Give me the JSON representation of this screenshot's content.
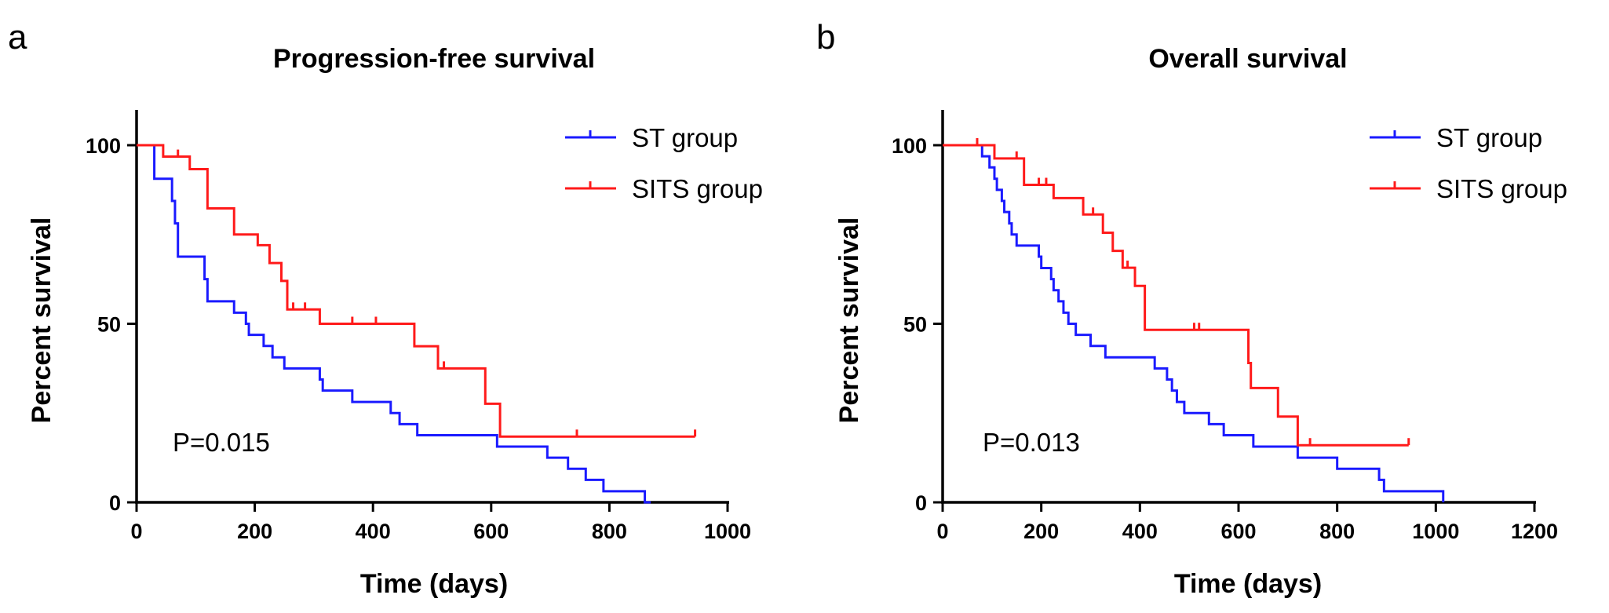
{
  "colors": {
    "st": "#1a1aff",
    "sits": "#ff1a1a"
  },
  "chart_data": [
    {
      "type": "line",
      "subtype": "kaplan-meier",
      "panel_label": "a",
      "title": "Progression-free survival",
      "xlabel": "Time (days)",
      "ylabel": "Percent survival",
      "xlim": [
        0,
        1000
      ],
      "ylim": [
        0,
        100
      ],
      "xticks": [
        0,
        200,
        400,
        600,
        800,
        1000
      ],
      "yticks": [
        0,
        50,
        100
      ],
      "legend_position": "top-right",
      "annotation": "P=0.015",
      "series": [
        {
          "name": "ST group",
          "color_key": "st",
          "steps": [
            [
              0,
              100
            ],
            [
              30,
              90.6
            ],
            [
              60,
              84.4
            ],
            [
              65,
              78.1
            ],
            [
              70,
              68.8
            ],
            [
              115,
              62.5
            ],
            [
              120,
              56.3
            ],
            [
              165,
              53.1
            ],
            [
              185,
              50
            ],
            [
              190,
              46.9
            ],
            [
              215,
              43.8
            ],
            [
              230,
              40.6
            ],
            [
              250,
              37.5
            ],
            [
              310,
              34.4
            ],
            [
              315,
              31.3
            ],
            [
              365,
              28.1
            ],
            [
              430,
              25
            ],
            [
              445,
              21.9
            ],
            [
              475,
              18.8
            ],
            [
              610,
              15.6
            ],
            [
              695,
              12.5
            ],
            [
              730,
              9.4
            ],
            [
              760,
              6.3
            ],
            [
              790,
              3.1
            ],
            [
              860,
              0
            ]
          ],
          "end": 870,
          "censored": []
        },
        {
          "name": "SITS group",
          "color_key": "sits",
          "steps": [
            [
              0,
              100
            ],
            [
              45,
              96.8
            ],
            [
              90,
              93.3
            ],
            [
              120,
              82.3
            ],
            [
              165,
              75
            ],
            [
              205,
              72
            ],
            [
              225,
              67
            ],
            [
              245,
              62
            ],
            [
              255,
              54
            ],
            [
              310,
              50
            ],
            [
              470,
              43.7
            ],
            [
              510,
              37.5
            ],
            [
              590,
              27.6
            ],
            [
              615,
              18.4
            ]
          ],
          "end": 945,
          "censored": [
            [
              70,
              96.8
            ],
            [
              265,
              54
            ],
            [
              285,
              54
            ],
            [
              365,
              50
            ],
            [
              405,
              50
            ],
            [
              520,
              37.5
            ],
            [
              745,
              18.4
            ],
            [
              945,
              18.4
            ]
          ]
        }
      ]
    },
    {
      "type": "line",
      "subtype": "kaplan-meier",
      "panel_label": "b",
      "title": "Overall survival",
      "xlabel": "Time (days)",
      "ylabel": "Percent survival",
      "xlim": [
        0,
        1200
      ],
      "ylim": [
        0,
        100
      ],
      "xticks": [
        0,
        200,
        400,
        600,
        800,
        1000,
        1200
      ],
      "yticks": [
        0,
        50,
        100
      ],
      "legend_position": "top-right",
      "annotation": "P=0.013",
      "series": [
        {
          "name": "ST group",
          "color_key": "st",
          "steps": [
            [
              0,
              100
            ],
            [
              80,
              96.9
            ],
            [
              95,
              93.8
            ],
            [
              105,
              90.6
            ],
            [
              110,
              87.5
            ],
            [
              120,
              84.4
            ],
            [
              125,
              81.3
            ],
            [
              135,
              78.1
            ],
            [
              140,
              75
            ],
            [
              150,
              71.9
            ],
            [
              195,
              68.8
            ],
            [
              200,
              65.6
            ],
            [
              220,
              62.5
            ],
            [
              225,
              59.4
            ],
            [
              235,
              56.3
            ],
            [
              245,
              53.1
            ],
            [
              255,
              50
            ],
            [
              270,
              46.9
            ],
            [
              300,
              43.8
            ],
            [
              330,
              40.6
            ],
            [
              430,
              37.5
            ],
            [
              455,
              34.4
            ],
            [
              465,
              31.3
            ],
            [
              475,
              28.1
            ],
            [
              490,
              25
            ],
            [
              540,
              21.9
            ],
            [
              570,
              18.8
            ],
            [
              630,
              15.6
            ],
            [
              720,
              12.5
            ],
            [
              800,
              9.4
            ],
            [
              885,
              6.3
            ],
            [
              895,
              3.1
            ],
            [
              1015,
              0
            ]
          ],
          "end": 1015,
          "censored": []
        },
        {
          "name": "SITS group",
          "color_key": "sits",
          "steps": [
            [
              0,
              100
            ],
            [
              105,
              96.3
            ],
            [
              165,
              88.9
            ],
            [
              225,
              85.2
            ],
            [
              285,
              80.6
            ],
            [
              325,
              75.5
            ],
            [
              345,
              70.4
            ],
            [
              365,
              65.7
            ],
            [
              390,
              60.6
            ],
            [
              410,
              48.3
            ],
            [
              620,
              39
            ],
            [
              625,
              32
            ],
            [
              680,
              24
            ],
            [
              720,
              16
            ]
          ],
          "end": 945,
          "censored": [
            [
              70,
              100
            ],
            [
              150,
              96.3
            ],
            [
              195,
              88.9
            ],
            [
              210,
              88.9
            ],
            [
              305,
              80.6
            ],
            [
              375,
              65.7
            ],
            [
              510,
              48.3
            ],
            [
              520,
              48.3
            ],
            [
              745,
              16
            ],
            [
              945,
              16
            ]
          ]
        }
      ]
    }
  ]
}
